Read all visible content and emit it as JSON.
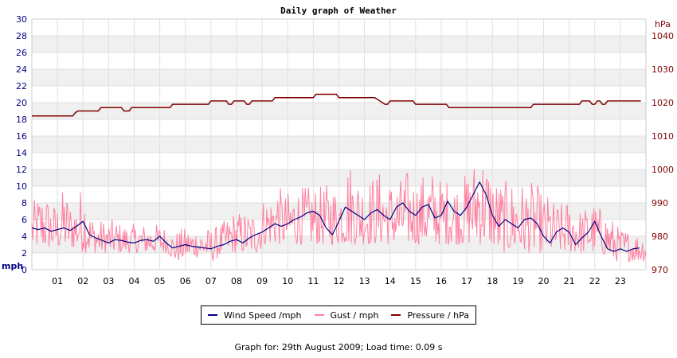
{
  "chart_data": {
    "type": "line",
    "title": "Daily graph of Weather",
    "left_unit": "mph",
    "right_unit": "hPa",
    "left_axis": {
      "min": 0,
      "max": 30,
      "step": 2,
      "ticks": [
        "0",
        "2",
        "4",
        "6",
        "8",
        "10",
        "12",
        "14",
        "16",
        "18",
        "20",
        "22",
        "24",
        "26",
        "28",
        "30"
      ]
    },
    "right_axis": {
      "min": 970,
      "max": 1045,
      "ticks": [
        "970",
        "980",
        "990",
        "1000",
        "1010",
        "1020",
        "1030",
        "1040"
      ]
    },
    "x_axis": {
      "min": 0,
      "max": 24,
      "ticks": [
        "01",
        "02",
        "03",
        "04",
        "05",
        "06",
        "07",
        "08",
        "09",
        "10",
        "11",
        "12",
        "13",
        "14",
        "15",
        "16",
        "17",
        "18",
        "19",
        "20",
        "21",
        "22",
        "23"
      ]
    },
    "grid": true,
    "legend_position": "bottom-center",
    "series": [
      {
        "name": "Wind Speed /mph",
        "color": "#000080",
        "axis": "left",
        "x": [
          0,
          0.25,
          0.5,
          0.75,
          1,
          1.25,
          1.5,
          1.75,
          2,
          2.25,
          2.5,
          2.75,
          3,
          3.25,
          3.5,
          3.75,
          4,
          4.25,
          4.5,
          4.75,
          5,
          5.25,
          5.5,
          5.75,
          6,
          6.25,
          6.5,
          6.75,
          7,
          7.25,
          7.5,
          7.75,
          8,
          8.25,
          8.5,
          8.75,
          9,
          9.25,
          9.5,
          9.75,
          10,
          10.25,
          10.5,
          10.75,
          11,
          11.25,
          11.5,
          11.75,
          12,
          12.25,
          12.5,
          12.75,
          13,
          13.25,
          13.5,
          13.75,
          14,
          14.25,
          14.5,
          14.75,
          15,
          15.25,
          15.5,
          15.75,
          16,
          16.25,
          16.5,
          16.75,
          17,
          17.25,
          17.5,
          17.75,
          18,
          18.25,
          18.5,
          18.75,
          19,
          19.25,
          19.5,
          19.75,
          20,
          20.25,
          20.5,
          20.75,
          21,
          21.25,
          21.5,
          21.75,
          22,
          22.25,
          22.5,
          22.75,
          23,
          23.25,
          23.5,
          23.75
        ],
        "values": [
          5,
          4.8,
          5,
          4.6,
          4.8,
          5,
          4.7,
          5.2,
          5.8,
          4.2,
          3.8,
          3.5,
          3.2,
          3.6,
          3.5,
          3.3,
          3.2,
          3.5,
          3.6,
          3.4,
          4,
          3.2,
          2.6,
          2.8,
          3,
          2.8,
          2.7,
          2.6,
          2.5,
          2.8,
          3,
          3.4,
          3.6,
          3.2,
          3.8,
          4.2,
          4.5,
          5,
          5.5,
          5.2,
          5.5,
          6,
          6.3,
          6.8,
          7,
          6.5,
          5,
          4.2,
          5.8,
          7.5,
          7,
          6.5,
          6,
          6.8,
          7.2,
          6.5,
          6,
          7.5,
          8,
          7,
          6.5,
          7.5,
          7.8,
          6.2,
          6.5,
          8.2,
          7,
          6.5,
          7.5,
          9,
          10.5,
          9,
          6.5,
          5.2,
          6,
          5.5,
          5,
          6,
          6.2,
          5.5,
          4,
          3.2,
          4.5,
          5,
          4.5,
          3,
          3.8,
          4.5,
          5.8,
          4,
          2.5,
          2.2,
          2.5,
          2.2,
          2.5,
          2.6
        ]
      },
      {
        "name": "Gust / mph",
        "color": "#ff80a0",
        "axis": "left",
        "samples": 720,
        "min_values": [
          2.5,
          2.5,
          2.5,
          2.5,
          2.5,
          2.5,
          2.5,
          2.5,
          2,
          2,
          2,
          2,
          2,
          2,
          2,
          2,
          2,
          2,
          2,
          2,
          2,
          2,
          1,
          1,
          1.5,
          1.5,
          1.5,
          1.5,
          1,
          1.5,
          2,
          2,
          2,
          2,
          2,
          2,
          3,
          3,
          3,
          3,
          3,
          3,
          3,
          3,
          3,
          3,
          3,
          3,
          3,
          3,
          3,
          3,
          3,
          3,
          3,
          3,
          3,
          3,
          3,
          3,
          3,
          3,
          3,
          3,
          3,
          3,
          3,
          3,
          3,
          3,
          3,
          3,
          2,
          2,
          2,
          2,
          2,
          2,
          2,
          2,
          2,
          2,
          2,
          2,
          2,
          2,
          2,
          2,
          2,
          1.5,
          1,
          1,
          1,
          1,
          1,
          1
        ],
        "max_values": [
          8,
          9,
          9.5,
          8,
          8,
          10,
          8,
          8.5,
          11,
          7,
          6,
          6,
          6,
          6,
          5.5,
          5.5,
          5.5,
          5.5,
          5.5,
          5.5,
          5.5,
          5,
          4.5,
          5,
          5,
          5,
          5,
          5,
          5,
          5.5,
          6,
          7,
          7,
          7,
          7,
          7.5,
          9,
          9,
          10.5,
          9,
          9.5,
          10,
          10,
          10,
          10,
          10,
          10.5,
          10,
          11,
          13.5,
          12,
          11,
          11,
          11.5,
          12,
          11,
          10.5,
          11,
          12,
          11,
          11,
          12,
          12,
          11,
          11,
          11,
          10.5,
          11.5,
          12,
          15,
          14,
          12,
          11,
          10.5,
          11,
          11,
          10.5,
          10.5,
          10.5,
          9,
          9,
          8,
          8,
          8.5,
          8.5,
          7,
          8,
          8,
          7.5,
          7,
          6,
          5,
          5,
          4.5,
          4.5,
          4.5
        ]
      },
      {
        "name": "Pressure / hPa",
        "color": "#800000",
        "axis": "right",
        "x": [
          0,
          1.6,
          1.7,
          1.8,
          2.6,
          2.7,
          3.5,
          3.6,
          3.8,
          3.9,
          5.4,
          5.5,
          6.9,
          7,
          7.6,
          7.7,
          7.8,
          7.9,
          8.3,
          8.4,
          8.5,
          8.6,
          9.4,
          9.5,
          11,
          11.1,
          11.9,
          12,
          12.2,
          12.3,
          13.4,
          13.5,
          13.6,
          13.7,
          13.8,
          13.9,
          14,
          14.1,
          14.9,
          15,
          16.2,
          16.3,
          17.4,
          17.5,
          19.5,
          19.6,
          20.4,
          20.5,
          21.4,
          21.5,
          21.8,
          21.9,
          22,
          22.1,
          22.2,
          22.3,
          22.4,
          22.5,
          23.5,
          23.8
        ],
        "values": [
          1016,
          1016,
          1017,
          1017.5,
          1017.5,
          1018.5,
          1018.5,
          1017.5,
          1017.5,
          1018.5,
          1018.5,
          1019.5,
          1019.5,
          1020.5,
          1020.5,
          1019.5,
          1019.5,
          1020.5,
          1020.5,
          1019.5,
          1019.5,
          1020.5,
          1020.5,
          1021.5,
          1021.5,
          1022.5,
          1022.5,
          1021.5,
          1021.5,
          1021.5,
          1021.5,
          1021,
          1020.5,
          1020,
          1019.5,
          1019.5,
          1020.5,
          1020.5,
          1020.5,
          1019.5,
          1019.5,
          1018.5,
          1018.5,
          1018.5,
          1018.5,
          1019.5,
          1019.5,
          1019.5,
          1019.5,
          1020.5,
          1020.5,
          1019.5,
          1019.5,
          1020.5,
          1020.5,
          1019.5,
          1019.5,
          1020.5,
          1020.5,
          1020.5
        ]
      }
    ]
  },
  "legend": {
    "wind": "Wind Speed /mph",
    "gust": "Gust / mph",
    "pressure": "Pressure / hPa"
  },
  "footer": "Graph for: 29th August 2009; Load time: 0.09 s",
  "colors": {
    "wind": "#000080",
    "gust": "#ff80a0",
    "pressure": "#800000",
    "band": "#f0f0f0",
    "grid": "#e0e0e0"
  }
}
